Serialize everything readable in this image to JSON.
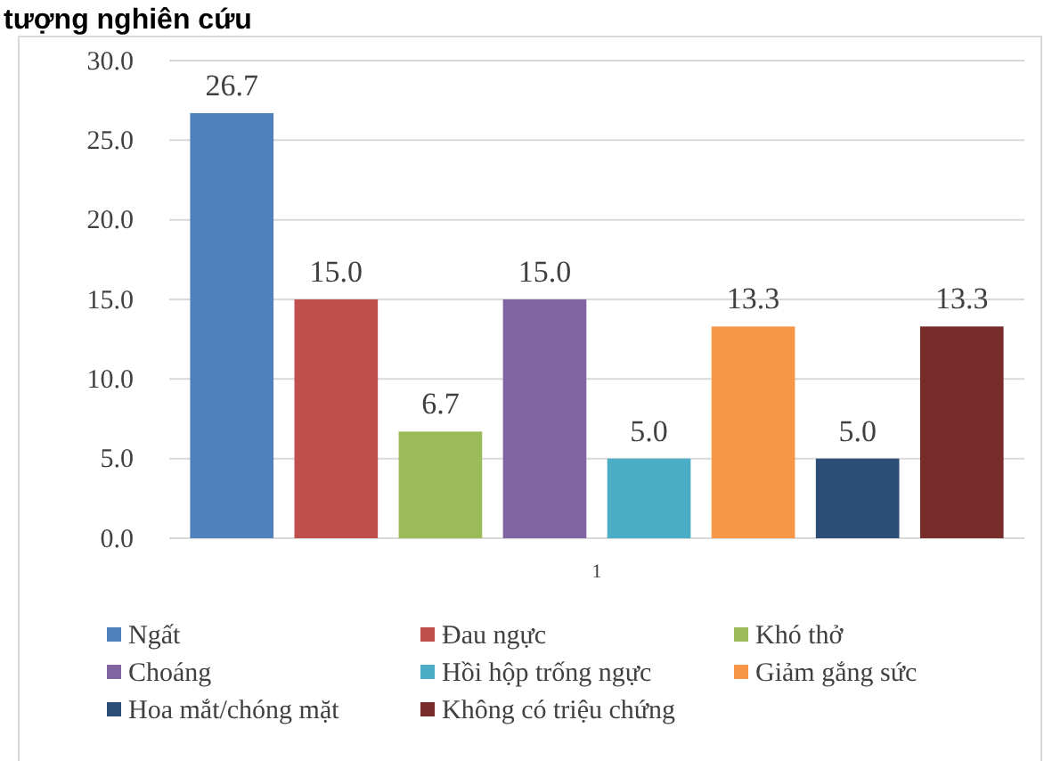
{
  "chart_data": {
    "type": "bar",
    "title": "tượng nghiên cứu",
    "categories": [
      "1"
    ],
    "series": [
      {
        "name": "Ngất",
        "color": "#4f81bd",
        "values": [
          26.7
        ],
        "value_labels": [
          "26.7"
        ]
      },
      {
        "name": "Đau ngực",
        "color": "#c0504d",
        "values": [
          15.0
        ],
        "value_labels": [
          "15.0"
        ]
      },
      {
        "name": "Khó thở",
        "color": "#9bbb59",
        "values": [
          6.7
        ],
        "value_labels": [
          "6.7"
        ]
      },
      {
        "name": "Choáng",
        "color": "#8064a2",
        "values": [
          15.0
        ],
        "value_labels": [
          "15.0"
        ]
      },
      {
        "name": "Hồi hộp trống ngực",
        "color": "#4bacc6",
        "values": [
          5.0
        ],
        "value_labels": [
          "5.0"
        ]
      },
      {
        "name": "Giảm gắng sức",
        "color": "#f79646",
        "values": [
          13.3
        ],
        "value_labels": [
          "13.3"
        ]
      },
      {
        "name": "Hoa mắt/chóng mặt",
        "color": "#2c4d75",
        "values": [
          5.0
        ],
        "value_labels": [
          "5.0"
        ]
      },
      {
        "name": "Không có triệu chứng",
        "color": "#772c2a",
        "values": [
          13.3
        ],
        "value_labels": [
          "13.3"
        ]
      }
    ],
    "ylim": [
      0,
      30
    ],
    "yticks": [
      {
        "value": 0,
        "label": "0.0"
      },
      {
        "value": 5,
        "label": "5.0"
      },
      {
        "value": 10,
        "label": "10.0"
      },
      {
        "value": 15,
        "label": "15.0"
      },
      {
        "value": 20,
        "label": "20.0"
      },
      {
        "value": 25,
        "label": "25.0"
      },
      {
        "value": 30,
        "label": "30.0"
      }
    ],
    "grid": "y",
    "legend": "bottom"
  }
}
